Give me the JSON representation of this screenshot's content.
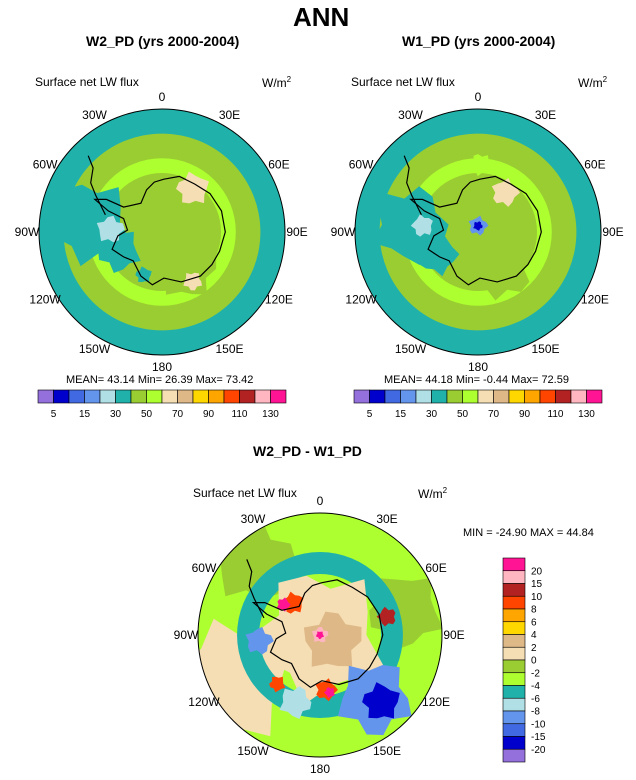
{
  "figure_title": "ANN",
  "panels": [
    {
      "title": "W2_PD (yrs 2000-2004)",
      "var_label": "Surface net LW flux",
      "units": "W/m",
      "units_sup": "2",
      "stats": "MEAN= 43.14  Min= 26.39  Max= 73.42"
    },
    {
      "title": "W1_PD (yrs 2000-2004)",
      "var_label": "Surface net LW flux",
      "units": "W/m",
      "units_sup": "2",
      "stats": "MEAN= 44.18  Min= -0.44  Max= 72.59"
    },
    {
      "title": "W2_PD - W1_PD",
      "var_label": "Surface net LW flux",
      "units": "W/m",
      "units_sup": "2",
      "stats": "MIN = -24.90  MAX =  44.84"
    }
  ],
  "lon_labels": [
    "0",
    "30E",
    "60E",
    "90E",
    "120E",
    "150E",
    "180",
    "150W",
    "120W",
    "90W",
    "60W",
    "30W"
  ],
  "colorbar_top": {
    "labels": [
      "5",
      "15",
      "30",
      "50",
      "70",
      "90",
      "110",
      "130"
    ],
    "colors": [
      "#9370db",
      "#0000cd",
      "#4169e1",
      "#6495ed",
      "#b0e0e6",
      "#20b2aa",
      "#9acd32",
      "#adff2f",
      "#f5deb3",
      "#deb887",
      "#ffd700",
      "#ffa500",
      "#ff4500",
      "#b22222",
      "#ffb6c1",
      "#ff1493"
    ]
  },
  "colorbar_diff": {
    "labels": [
      "20",
      "15",
      "10",
      "8",
      "6",
      "4",
      "2",
      "0",
      "-2",
      "-4",
      "-6",
      "-8",
      "-10",
      "-15",
      "-20"
    ],
    "colors": [
      "#ff1493",
      "#ffb6c1",
      "#b22222",
      "#ff4500",
      "#ffa500",
      "#ffd700",
      "#deb887",
      "#f5deb3",
      "#9acd32",
      "#adff2f",
      "#20b2aa",
      "#b0e0e6",
      "#6495ed",
      "#4169e1",
      "#0000cd",
      "#9370db"
    ]
  }
}
